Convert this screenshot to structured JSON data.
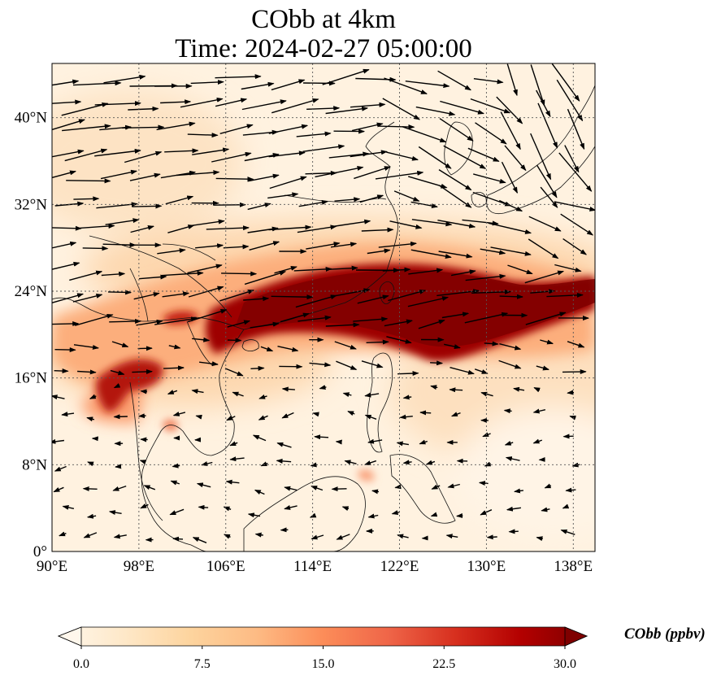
{
  "title": {
    "line1": "CObb at 4km",
    "line2": "Time: 2024-02-27 05:00:00"
  },
  "map": {
    "lon_range": [
      90,
      140
    ],
    "lat_range": [
      0,
      45
    ],
    "lon_ticks": [
      {
        "value": 90,
        "label": "90°E"
      },
      {
        "value": 98,
        "label": "98°E"
      },
      {
        "value": 106,
        "label": "106°E"
      },
      {
        "value": 114,
        "label": "114°E"
      },
      {
        "value": 122,
        "label": "122°E"
      },
      {
        "value": 130,
        "label": "130°E"
      },
      {
        "value": 138,
        "label": "138°E"
      }
    ],
    "lat_ticks": [
      {
        "value": 0,
        "label": "0°"
      },
      {
        "value": 8,
        "label": "8°N"
      },
      {
        "value": 16,
        "label": "16°N"
      },
      {
        "value": 24,
        "label": "24°N"
      },
      {
        "value": 32,
        "label": "32°N"
      },
      {
        "value": 40,
        "label": "40°N"
      }
    ],
    "gridlines": true,
    "field": "CObb",
    "units": "ppbv",
    "plume_axis": [
      [
        91,
        19
      ],
      [
        96,
        17
      ],
      [
        100,
        19
      ],
      [
        104,
        20
      ],
      [
        108,
        21
      ],
      [
        112,
        22.5
      ],
      [
        116,
        23.3
      ],
      [
        120,
        24
      ],
      [
        124,
        23
      ],
      [
        128,
        22
      ],
      [
        132,
        21
      ],
      [
        136,
        21.5
      ],
      [
        140,
        22.5
      ]
    ],
    "wind": "westerly to north-westerly above 20°N; weak easterly below 16°N"
  },
  "colorbar": {
    "min": 0.0,
    "max": 30.0,
    "ticks": [
      "0.0",
      "7.5",
      "15.0",
      "22.5",
      "30.0"
    ],
    "title": "CObb (ppbv)",
    "colormap": "OrRd",
    "colors": [
      "#fff7ec",
      "#fee8c8",
      "#fdd49e",
      "#fdbb84",
      "#fc8d59",
      "#ef6548",
      "#d7301f",
      "#b30000",
      "#7f0000"
    ]
  }
}
